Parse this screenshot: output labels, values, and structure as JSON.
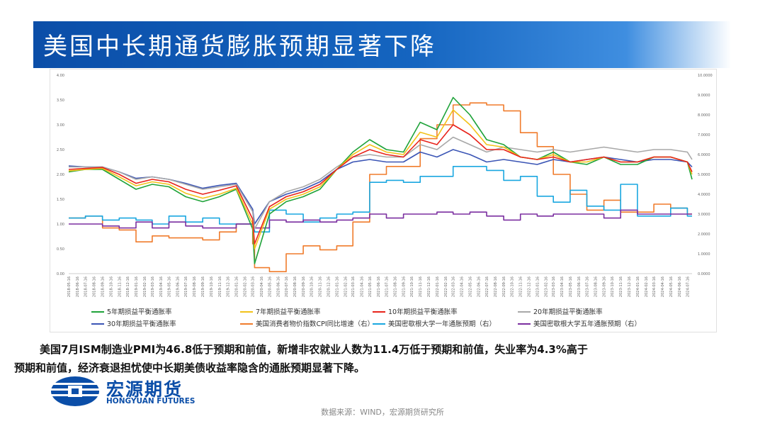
{
  "slide": {
    "title": "美国中长期通货膨胀预期显著下降",
    "caption_line1": "美国7月ISM制造业PMI为46.8低于预期和前值，新增非农就业人数为11.4万低于预期和前值，失业率为4.3%高于",
    "caption_line2": "预期和前值，经济衰退担忧使中长期美债收益率隐含的通胀预期显著下降。",
    "source": "数据来源：WIND，宏源期货研究所"
  },
  "logo": {
    "name_cn": "宏源期货",
    "name_en": "HONGYUAN FUTURES",
    "color": "#0b4ea8"
  },
  "chart_data": {
    "type": "line",
    "x": [
      "2018-05-16",
      "2018-07-16",
      "2018-09-16",
      "2018-11-16",
      "2019-01-16",
      "2019-03-16",
      "2019-05-16",
      "2019-07-16",
      "2019-09-16",
      "2019-11-16",
      "2020-01-16",
      "2020-03-16",
      "2020-03-23",
      "2020-05-16",
      "2020-07-16",
      "2020-09-16",
      "2020-11-16",
      "2021-01-16",
      "2021-03-16",
      "2021-05-16",
      "2021-07-16",
      "2021-09-16",
      "2021-11-16",
      "2022-01-16",
      "2022-03-16",
      "2022-05-16",
      "2022-07-16",
      "2022-09-16",
      "2022-11-16",
      "2023-01-16",
      "2023-03-16",
      "2023-05-16",
      "2023-07-16",
      "2023-09-16",
      "2023-11-16",
      "2024-01-16",
      "2024-03-16",
      "2024-05-16",
      "2024-07-16",
      "2024-08-02"
    ],
    "x_tick_labels": [
      "2018-05-16",
      "2018-06-16",
      "2018-07-16",
      "2018-08-16",
      "2018-09-16",
      "2018-10-16",
      "2018-11-16",
      "2018-12-16",
      "2019-01-16",
      "2019-02-16",
      "2019-03-16",
      "2019-04-16",
      "2019-05-16",
      "2019-06-16",
      "2019-07-16",
      "2019-08-16",
      "2019-09-16",
      "2019-10-16",
      "2019-11-16",
      "2019-12-16",
      "2020-01-16",
      "2020-02-16",
      "2020-03-16",
      "2020-04-16",
      "2020-05-16",
      "2020-06-16",
      "2020-07-16",
      "2020-08-16",
      "2020-09-16",
      "2020-10-16",
      "2020-11-16",
      "2020-12-16",
      "2021-01-16",
      "2021-02-16",
      "2021-03-16",
      "2021-04-16",
      "2021-05-16",
      "2021-06-16",
      "2021-07-16",
      "2021-08-16",
      "2021-09-16",
      "2021-10-16",
      "2021-11-16",
      "2021-12-16",
      "2022-01-16",
      "2022-02-16",
      "2022-03-16",
      "2022-04-16",
      "2022-05-16",
      "2022-06-16",
      "2022-07-16",
      "2022-08-16",
      "2022-09-16",
      "2022-10-16",
      "2022-11-16",
      "2022-12-16",
      "2023-01-16",
      "2023-02-16",
      "2023-03-16",
      "2023-04-16",
      "2023-05-16",
      "2023-06-16",
      "2023-07-16",
      "2023-08-16",
      "2023-09-16",
      "2023-10-16",
      "2023-11-16",
      "2023-12-16",
      "2024-01-16",
      "2024-02-16",
      "2024-03-16",
      "2024-04-16",
      "2024-05-16",
      "2024-06-16",
      "2024-07-16"
    ],
    "y_left": {
      "ylim": [
        0,
        4
      ],
      "tick_labels": [
        "0.00",
        "0.50",
        "1.00",
        "1.50",
        "2.00",
        "2.50",
        "3.00",
        "3.50",
        "4.00"
      ]
    },
    "y_right": {
      "ylim": [
        0,
        10
      ],
      "tick_labels": [
        "0.0000",
        "1.0000",
        "2.0000",
        "3.0000",
        "4.0000",
        "5.0000",
        "6.0000",
        "7.0000",
        "8.0000",
        "9.0000",
        "10.0000"
      ]
    },
    "grid": false,
    "legend_position": "bottom",
    "series": [
      {
        "name": "5年期损益平衡通胀率",
        "axis": "left",
        "color": "#1fa33a",
        "values": [
          2.05,
          2.1,
          2.1,
          1.9,
          1.7,
          1.8,
          1.75,
          1.55,
          1.45,
          1.55,
          1.7,
          0.9,
          0.2,
          1.2,
          1.45,
          1.55,
          1.7,
          2.1,
          2.45,
          2.7,
          2.5,
          2.45,
          3.05,
          2.9,
          3.55,
          3.2,
          2.7,
          2.6,
          2.35,
          2.3,
          2.45,
          2.25,
          2.2,
          2.35,
          2.2,
          2.2,
          2.35,
          2.35,
          2.25,
          1.9
        ]
      },
      {
        "name": "7年期损益平衡通胀率",
        "axis": "left",
        "color": "#f2c21a",
        "values": [
          2.07,
          2.1,
          2.12,
          1.95,
          1.77,
          1.85,
          1.8,
          1.62,
          1.52,
          1.6,
          1.72,
          1.0,
          0.5,
          1.3,
          1.5,
          1.6,
          1.75,
          2.1,
          2.4,
          2.6,
          2.45,
          2.4,
          2.85,
          2.75,
          3.3,
          3.0,
          2.6,
          2.55,
          2.35,
          2.3,
          2.4,
          2.25,
          2.25,
          2.35,
          2.25,
          2.25,
          2.35,
          2.35,
          2.25,
          2.0
        ]
      },
      {
        "name": "10年期损益平衡通胀率",
        "axis": "left",
        "color": "#e8231b",
        "values": [
          2.1,
          2.12,
          2.14,
          2.0,
          1.82,
          1.9,
          1.85,
          1.7,
          1.6,
          1.68,
          1.77,
          1.1,
          0.6,
          1.35,
          1.55,
          1.65,
          1.8,
          2.1,
          2.35,
          2.5,
          2.4,
          2.35,
          2.7,
          2.6,
          3.0,
          2.8,
          2.5,
          2.5,
          2.35,
          2.3,
          2.35,
          2.25,
          2.3,
          2.35,
          2.25,
          2.25,
          2.35,
          2.35,
          2.25,
          2.05
        ]
      },
      {
        "name": "20年期损益平衡通胀率",
        "axis": "left",
        "color": "#a8a8a8",
        "values": [
          2.15,
          2.15,
          2.15,
          2.05,
          1.9,
          1.95,
          1.9,
          1.8,
          1.7,
          1.75,
          1.8,
          1.25,
          0.9,
          1.45,
          1.65,
          1.75,
          1.9,
          2.15,
          2.35,
          2.4,
          2.35,
          2.35,
          2.6,
          2.5,
          2.75,
          2.6,
          2.45,
          2.55,
          2.5,
          2.45,
          2.5,
          2.45,
          2.5,
          2.55,
          2.5,
          2.45,
          2.5,
          2.5,
          2.45,
          2.3
        ]
      },
      {
        "name": "30年期损益平衡通胀率",
        "axis": "left",
        "color": "#3b55b5",
        "values": [
          2.17,
          2.15,
          2.15,
          2.05,
          1.92,
          1.95,
          1.9,
          1.82,
          1.72,
          1.78,
          1.82,
          1.3,
          1.0,
          1.45,
          1.6,
          1.7,
          1.85,
          2.1,
          2.25,
          2.3,
          2.25,
          2.25,
          2.45,
          2.35,
          2.5,
          2.4,
          2.25,
          2.3,
          2.25,
          2.2,
          2.3,
          2.25,
          2.3,
          2.35,
          2.3,
          2.25,
          2.3,
          2.3,
          2.25,
          2.15
        ]
      },
      {
        "name": "美国消费者物价指数CPI同比增速（右）",
        "axis": "right",
        "color": "#f07c2c",
        "values": [
          2.8,
          2.9,
          2.3,
          2.2,
          1.6,
          1.9,
          1.8,
          1.8,
          1.7,
          2.1,
          2.5,
          1.5,
          0.3,
          0.1,
          1.0,
          1.4,
          1.2,
          1.4,
          2.6,
          5.0,
          5.4,
          5.4,
          6.8,
          7.5,
          8.5,
          8.6,
          8.5,
          8.2,
          7.1,
          6.4,
          5.0,
          4.0,
          3.2,
          3.7,
          3.1,
          3.1,
          3.5,
          3.3,
          3.0,
          3.0
        ]
      },
      {
        "name": "美国密歇根大学一年通胀预期（右）",
        "axis": "right",
        "color": "#1aa7e0",
        "values": [
          2.8,
          2.9,
          2.7,
          2.8,
          2.7,
          2.5,
          2.9,
          2.6,
          2.8,
          2.5,
          2.5,
          2.2,
          2.1,
          3.2,
          3.0,
          2.6,
          2.8,
          3.0,
          3.1,
          4.6,
          4.7,
          4.6,
          4.9,
          4.9,
          5.4,
          5.4,
          5.2,
          4.7,
          4.9,
          3.9,
          3.6,
          4.2,
          3.4,
          3.2,
          4.5,
          2.9,
          2.9,
          3.3,
          2.9,
          2.9
        ]
      },
      {
        "name": "美国密歇根大学五年通胀预期（右）",
        "axis": "right",
        "color": "#7b2fa0",
        "values": [
          2.5,
          2.5,
          2.4,
          2.3,
          2.6,
          2.3,
          2.6,
          2.4,
          2.3,
          2.3,
          2.5,
          2.3,
          2.3,
          2.7,
          2.6,
          2.7,
          2.6,
          2.7,
          2.8,
          3.0,
          2.8,
          3.0,
          3.0,
          3.1,
          3.0,
          3.1,
          2.9,
          2.7,
          3.0,
          2.9,
          3.0,
          3.0,
          3.0,
          2.8,
          3.2,
          3.0,
          3.0,
          3.0,
          3.0,
          3.0
        ]
      }
    ]
  }
}
